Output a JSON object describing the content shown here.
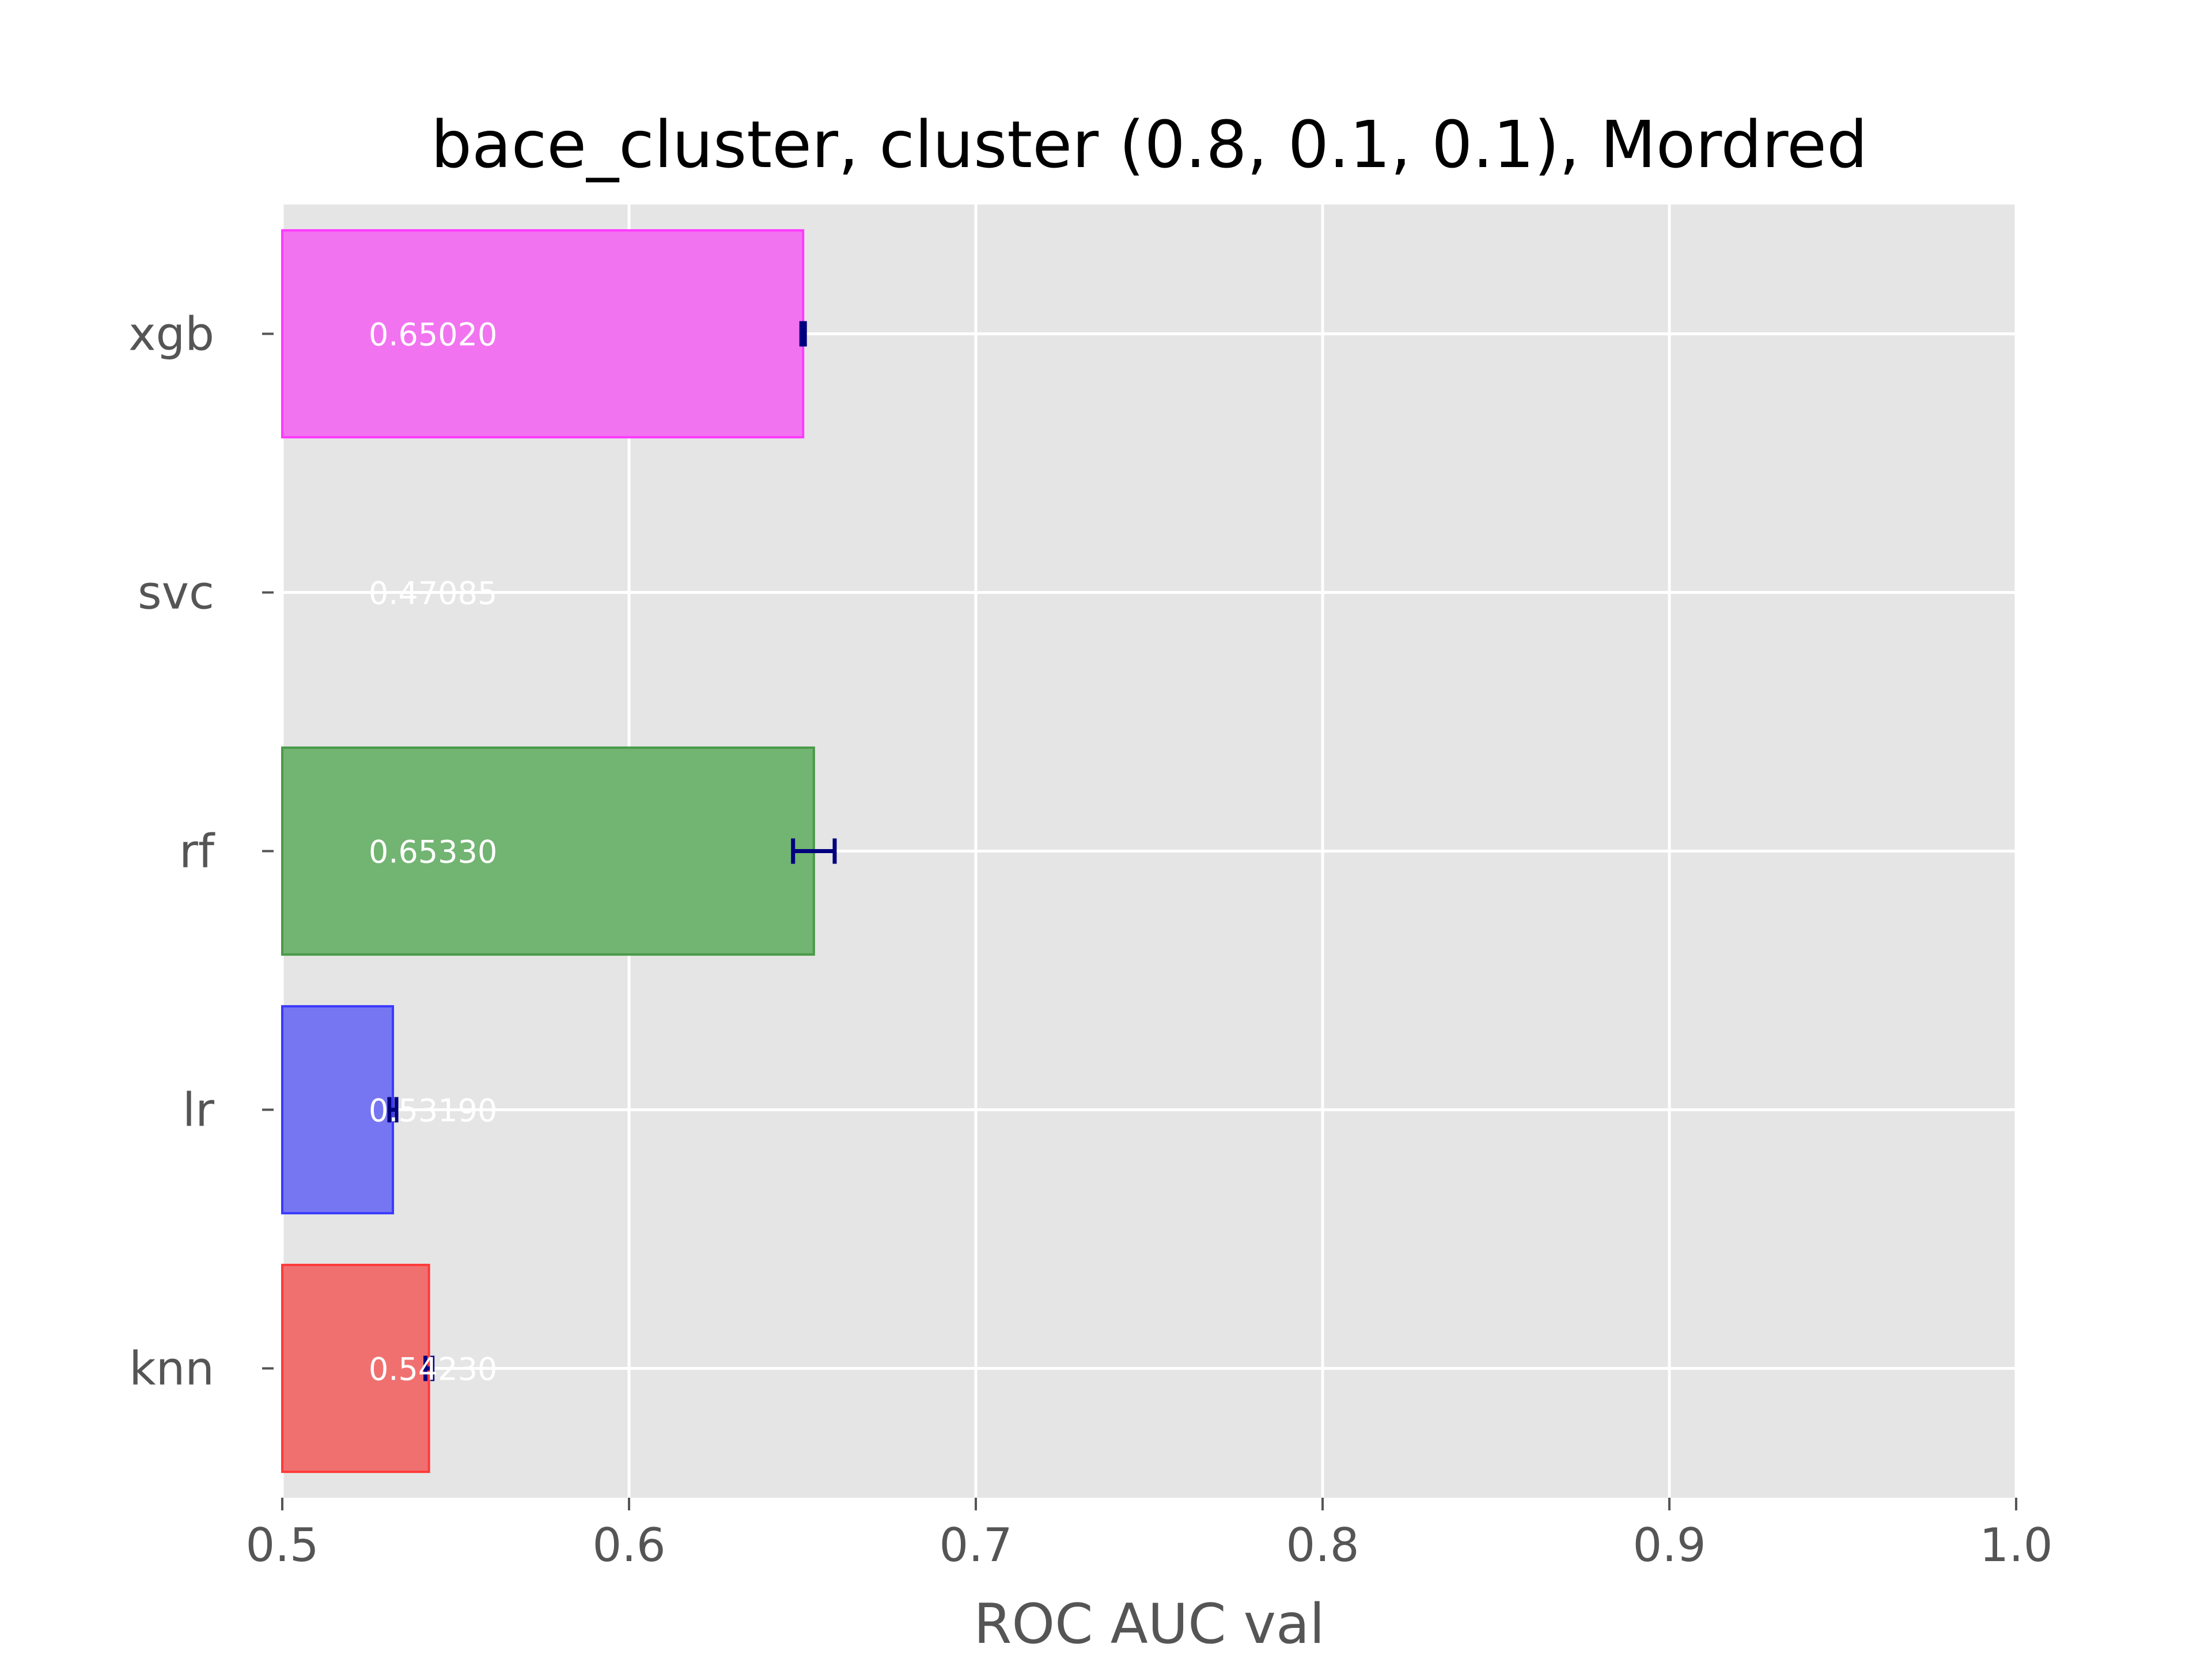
{
  "chart_data": {
    "type": "bar",
    "orientation": "horizontal",
    "title": "bace_cluster, cluster (0.8, 0.1, 0.1), Mordred",
    "xlabel": "ROC AUC val",
    "ylabel": "",
    "xlim": [
      0.5,
      1.0
    ],
    "xticks": [
      "0.5",
      "0.6",
      "0.7",
      "0.8",
      "0.9",
      "1.0"
    ],
    "grid": true,
    "categories": [
      "knn",
      "lr",
      "rf",
      "svc",
      "xgb"
    ],
    "values": [
      0.5423,
      0.5319,
      0.6533,
      0.47085,
      0.6502
    ],
    "errors": [
      0.001,
      0.001,
      0.006,
      0.0,
      0.0005
    ],
    "value_labels": [
      "0.54230",
      "0.53190",
      "0.65330",
      "0.47085",
      "0.65020"
    ],
    "colors": [
      "#f07070",
      "#7676f2",
      "#72b472",
      "#e5e5e5",
      "#f173f0"
    ],
    "edge_colors": [
      "#ff3a3a",
      "#3a3aff",
      "#4a9a4a",
      "#e5e5e5",
      "#ff3aff"
    ],
    "error_color": "#00007f",
    "background_color": "#e5e5e5"
  }
}
